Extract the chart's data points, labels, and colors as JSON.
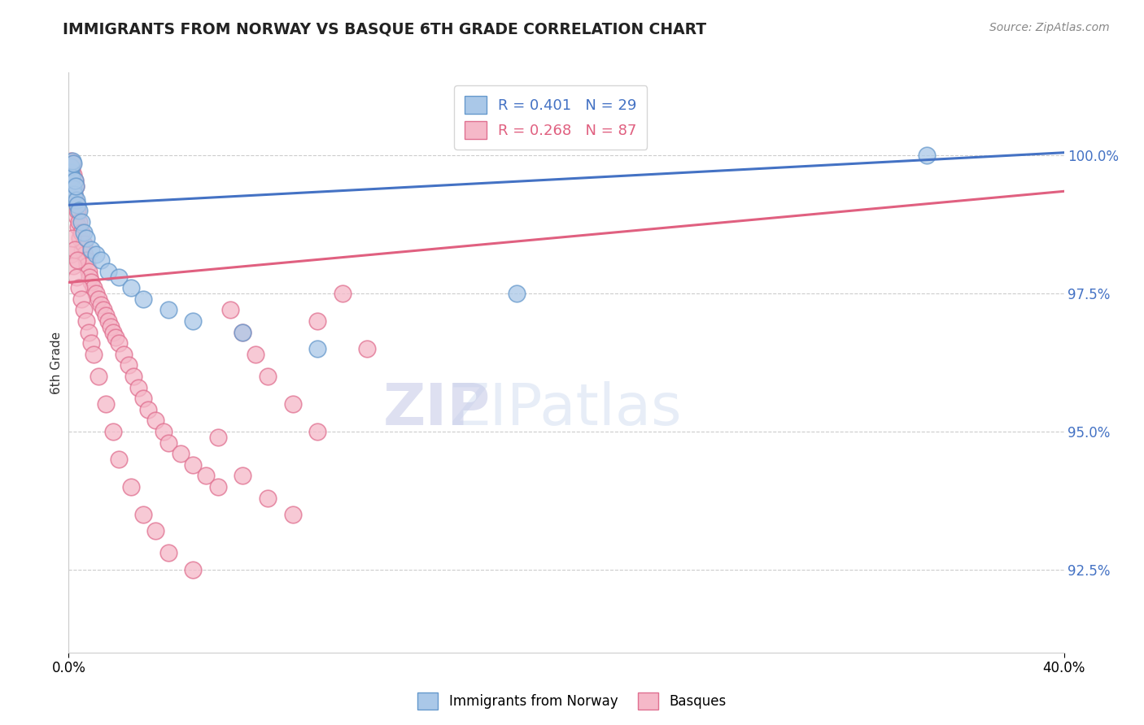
{
  "title": "IMMIGRANTS FROM NORWAY VS BASQUE 6TH GRADE CORRELATION CHART",
  "source": "Source: ZipAtlas.com",
  "ylabel": "6th Grade",
  "yticks": [
    92.5,
    95.0,
    97.5,
    100.0
  ],
  "ytick_labels": [
    "92.5%",
    "95.0%",
    "97.5%",
    "100.0%"
  ],
  "xlim": [
    0.0,
    40.0
  ],
  "ylim": [
    91.0,
    101.5
  ],
  "norway_color": "#aac8e8",
  "norway_edge": "#6699cc",
  "basque_color": "#f5b8c8",
  "basque_edge": "#e07090",
  "norway_line_color": "#4472c4",
  "basque_line_color": "#e06080",
  "norway_R": 0.401,
  "norway_N": 29,
  "basque_R": 0.268,
  "basque_N": 87,
  "norway_x": [
    0.05,
    0.08,
    0.1,
    0.12,
    0.15,
    0.18,
    0.2,
    0.22,
    0.25,
    0.3,
    0.35,
    0.4,
    0.5,
    0.6,
    0.7,
    0.9,
    1.1,
    1.3,
    1.6,
    2.0,
    2.5,
    3.0,
    4.0,
    5.0,
    7.0,
    10.0,
    18.0,
    34.5,
    0.28
  ],
  "norway_y": [
    99.5,
    99.7,
    99.8,
    99.6,
    99.9,
    99.85,
    99.4,
    99.3,
    99.55,
    99.2,
    99.1,
    99.0,
    98.8,
    98.6,
    98.5,
    98.3,
    98.2,
    98.1,
    97.9,
    97.8,
    97.6,
    97.4,
    97.2,
    97.0,
    96.8,
    96.5,
    97.5,
    100.0,
    99.45
  ],
  "basque_x": [
    0.05,
    0.07,
    0.1,
    0.12,
    0.14,
    0.15,
    0.17,
    0.18,
    0.2,
    0.22,
    0.24,
    0.25,
    0.28,
    0.3,
    0.32,
    0.35,
    0.38,
    0.4,
    0.45,
    0.5,
    0.55,
    0.6,
    0.65,
    0.7,
    0.75,
    0.8,
    0.85,
    0.9,
    1.0,
    1.1,
    1.2,
    1.3,
    1.4,
    1.5,
    1.6,
    1.7,
    1.8,
    1.9,
    2.0,
    2.2,
    2.4,
    2.6,
    2.8,
    3.0,
    3.2,
    3.5,
    3.8,
    4.0,
    4.5,
    5.0,
    5.5,
    6.0,
    6.5,
    7.0,
    7.5,
    8.0,
    9.0,
    10.0,
    11.0,
    12.0,
    0.1,
    0.2,
    0.3,
    0.4,
    0.5,
    0.6,
    0.7,
    0.8,
    0.9,
    1.0,
    1.2,
    1.5,
    1.8,
    2.0,
    2.5,
    3.0,
    3.5,
    4.0,
    5.0,
    6.0,
    7.0,
    8.0,
    9.0,
    10.0,
    0.15,
    0.25,
    0.35
  ],
  "basque_y": [
    99.8,
    99.7,
    99.9,
    99.75,
    99.6,
    99.85,
    99.5,
    99.4,
    99.65,
    99.3,
    99.55,
    99.2,
    99.45,
    99.1,
    98.9,
    99.0,
    98.7,
    98.8,
    98.5,
    98.6,
    98.3,
    98.4,
    98.2,
    98.1,
    98.0,
    97.9,
    97.8,
    97.7,
    97.6,
    97.5,
    97.4,
    97.3,
    97.2,
    97.1,
    97.0,
    96.9,
    96.8,
    96.7,
    96.6,
    96.4,
    96.2,
    96.0,
    95.8,
    95.6,
    95.4,
    95.2,
    95.0,
    94.8,
    94.6,
    94.4,
    94.2,
    94.0,
    97.2,
    96.8,
    96.4,
    96.0,
    95.5,
    95.0,
    97.5,
    96.5,
    98.2,
    98.0,
    97.8,
    97.6,
    97.4,
    97.2,
    97.0,
    96.8,
    96.6,
    96.4,
    96.0,
    95.5,
    95.0,
    94.5,
    94.0,
    93.5,
    93.2,
    92.8,
    92.5,
    94.9,
    94.2,
    93.8,
    93.5,
    97.0,
    98.5,
    98.3,
    98.1
  ]
}
